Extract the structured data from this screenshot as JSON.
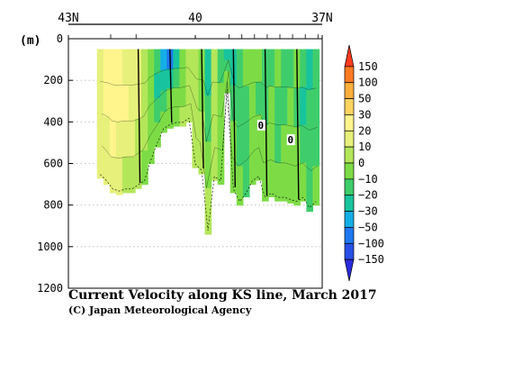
{
  "chart_data": {
    "type": "heatmap",
    "title": "Current Velocity along KS line, March 2017",
    "credit": "(C) Japan Meteorological Agency",
    "ylabel": "(m)",
    "x_top_ticks": [
      "43N",
      "40",
      "37N"
    ],
    "x_lim": [
      43,
      37
    ],
    "y_ticks": [
      0,
      200,
      400,
      600,
      800,
      1000,
      1200
    ],
    "y_lim": [
      0,
      1200
    ],
    "y_inverted": true,
    "grid": "dotted horizontal",
    "contour_labels": [
      "0",
      "0"
    ],
    "colorbar": {
      "tick_labels": [
        "150",
        "100",
        "50",
        "30",
        "20",
        "10",
        "0",
        "−10",
        "−20",
        "−30",
        "−50",
        "−100",
        "−150"
      ],
      "colors_top_to_bottom": [
        "#ff3c1e",
        "#ff7a22",
        "#ffae3c",
        "#ffd460",
        "#fff58c",
        "#e6f07a",
        "#b4e65a",
        "#7ddc46",
        "#3fcd6c",
        "#18c49e",
        "#14aee6",
        "#1e78f0",
        "#2850e6",
        "#2a2adc"
      ],
      "extends": "both"
    },
    "columns": [
      {
        "lat": 42.25,
        "depth_max": 670,
        "top": 50,
        "v": [
          12,
          15,
          14,
          10
        ]
      },
      {
        "lat": 42.1,
        "depth_max": 700,
        "top": 50,
        "v": [
          25,
          22,
          18,
          12
        ]
      },
      {
        "lat": 41.95,
        "depth_max": 740,
        "top": 50,
        "v": [
          28,
          26,
          20,
          14
        ]
      },
      {
        "lat": 41.8,
        "depth_max": 750,
        "top": 50,
        "v": [
          22,
          24,
          18,
          10
        ]
      },
      {
        "lat": 41.65,
        "depth_max": 740,
        "top": 50,
        "v": [
          18,
          20,
          14,
          8
        ]
      },
      {
        "lat": 41.5,
        "depth_max": 740,
        "top": 50,
        "v": [
          14,
          16,
          12,
          6
        ]
      },
      {
        "lat": 41.35,
        "depth_max": 720,
        "top": 50,
        "v": [
          10,
          12,
          8,
          3
        ]
      },
      {
        "lat": 41.2,
        "depth_max": 700,
        "top": 50,
        "v": [
          6,
          6,
          4,
          -2
        ]
      },
      {
        "lat": 41.05,
        "depth_max": 600,
        "top": 50,
        "v": [
          -4,
          -8,
          -6,
          -4
        ]
      },
      {
        "lat": 40.9,
        "depth_max": 520,
        "top": 50,
        "v": [
          -18,
          -22,
          -12,
          -6
        ]
      },
      {
        "lat": 40.75,
        "depth_max": 450,
        "top": 50,
        "v": [
          -40,
          -28,
          -14,
          -8
        ]
      },
      {
        "lat": 40.6,
        "depth_max": 430,
        "top": 50,
        "v": [
          -60,
          -30,
          -10,
          -4
        ]
      },
      {
        "lat": 40.45,
        "depth_max": 420,
        "top": 50,
        "v": [
          -30,
          -14,
          -6,
          -2
        ]
      },
      {
        "lat": 40.3,
        "depth_max": 420,
        "top": 50,
        "v": [
          -10,
          -6,
          -2,
          2
        ]
      },
      {
        "lat": 40.15,
        "depth_max": 400,
        "top": 50,
        "v": [
          2,
          4,
          6,
          6
        ]
      },
      {
        "lat": 40.0,
        "depth_max": 620,
        "top": 50,
        "v": [
          6,
          8,
          8,
          6
        ]
      },
      {
        "lat": 39.85,
        "depth_max": 650,
        "top": 50,
        "v": [
          -4,
          -2,
          2,
          4
        ]
      },
      {
        "lat": 39.7,
        "depth_max": 940,
        "top": 50,
        "v": [
          -22,
          -14,
          -4,
          2
        ]
      },
      {
        "lat": 39.55,
        "depth_max": 680,
        "top": 50,
        "v": [
          4,
          6,
          4,
          3
        ]
      },
      {
        "lat": 39.4,
        "depth_max": 700,
        "top": 50,
        "v": [
          -18,
          -10,
          -6,
          -2
        ]
      },
      {
        "lat": 39.25,
        "depth_max": 260,
        "top": 50,
        "v": [
          -26,
          -16,
          -8,
          -4
        ]
      },
      {
        "lat": 39.1,
        "depth_max": 740,
        "top": 50,
        "v": [
          -24,
          -20,
          -10,
          -4
        ]
      },
      {
        "lat": 38.95,
        "depth_max": 800,
        "top": 50,
        "v": [
          -12,
          -18,
          -12,
          -10
        ]
      },
      {
        "lat": 38.8,
        "depth_max": 760,
        "top": 50,
        "v": [
          -8,
          -14,
          -18,
          -12
        ]
      },
      {
        "lat": 38.65,
        "depth_max": 700,
        "top": 50,
        "v": [
          -4,
          -10,
          -8,
          -6
        ]
      },
      {
        "lat": 38.5,
        "depth_max": 680,
        "top": 50,
        "v": [
          -10,
          -12,
          -6,
          -4
        ]
      },
      {
        "lat": 38.35,
        "depth_max": 780,
        "top": 50,
        "v": [
          -12,
          -16,
          -10,
          -6
        ]
      },
      {
        "lat": 38.2,
        "depth_max": 760,
        "top": 50,
        "v": [
          -16,
          -8,
          -4,
          -8
        ]
      },
      {
        "lat": 38.05,
        "depth_max": 780,
        "top": 50,
        "v": [
          -10,
          -14,
          -14,
          -10
        ]
      },
      {
        "lat": 37.9,
        "depth_max": 780,
        "top": 50,
        "v": [
          -12,
          -18,
          -10,
          -8
        ]
      },
      {
        "lat": 37.75,
        "depth_max": 790,
        "top": 50,
        "v": [
          -14,
          -10,
          -8,
          -6
        ]
      },
      {
        "lat": 37.6,
        "depth_max": 800,
        "top": 50,
        "v": [
          -8,
          -12,
          -6,
          -4
        ]
      },
      {
        "lat": 37.45,
        "depth_max": 780,
        "top": 50,
        "v": [
          -18,
          -22,
          -12,
          -10
        ]
      },
      {
        "lat": 37.3,
        "depth_max": 830,
        "top": 50,
        "v": [
          -24,
          -20,
          -16,
          -12
        ]
      },
      {
        "lat": 37.15,
        "depth_max": 800,
        "top": 50,
        "v": [
          -20,
          -14,
          -12,
          -10
        ]
      }
    ]
  }
}
